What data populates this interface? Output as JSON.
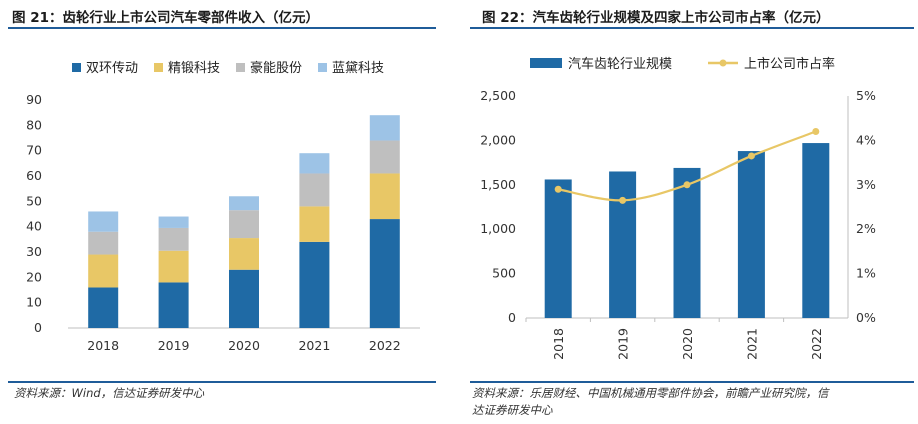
{
  "left": {
    "title": "图 21：齿轮行业上市公司汽车零部件收入（亿元）",
    "source": "资料来源：Wind，信达证券研发中心",
    "chart_data": {
      "type": "bar",
      "stacked": true,
      "categories": [
        "2018",
        "2019",
        "2020",
        "2021",
        "2022"
      ],
      "series": [
        {
          "name": "双环传动",
          "color": "#1f6aa5",
          "values": [
            16,
            18,
            23,
            34,
            43
          ]
        },
        {
          "name": "精锻科技",
          "color": "#e8c766",
          "values": [
            13,
            12.5,
            12.5,
            14,
            18
          ]
        },
        {
          "name": "豪能股份",
          "color": "#bfbfbf",
          "values": [
            9,
            9,
            11,
            13,
            13
          ]
        },
        {
          "name": "蓝黛科技",
          "color": "#9dc3e6",
          "values": [
            8,
            4.5,
            5.5,
            8,
            10
          ]
        }
      ],
      "ylim": [
        0,
        90
      ],
      "yticks": [
        "0",
        "10",
        "20",
        "30",
        "40",
        "50",
        "60",
        "70",
        "80",
        "90"
      ],
      "legend_position": "top"
    }
  },
  "right": {
    "title": "图 22：汽车齿轮行业规模及四家上市公司市占率（亿元）",
    "source_line1": "资料来源：乐居财经、中国机械通用零部件协会，前瞻产业研究院，信",
    "source_line2": "达证券研发中心",
    "chart_data": {
      "type": "bar+line",
      "categories": [
        "2018",
        "2019",
        "2020",
        "2021",
        "2022"
      ],
      "bar_series": {
        "name": "汽车齿轮行业规模",
        "color": "#1f6aa5",
        "values": [
          1560,
          1650,
          1690,
          1880,
          1970
        ]
      },
      "line_series": {
        "name": "上市公司市占率",
        "color": "#e8c766",
        "values": [
          2.9,
          2.65,
          3.0,
          3.65,
          4.2
        ],
        "unit": "%"
      },
      "y_left_lim": [
        0,
        2500
      ],
      "y_left_ticks": [
        "0",
        "500",
        "1,000",
        "1,500",
        "2,000",
        "2,500"
      ],
      "y_right_lim": [
        0,
        5
      ],
      "y_right_ticks": [
        "0%",
        "1%",
        "2%",
        "3%",
        "4%",
        "5%"
      ],
      "legend_position": "top"
    }
  },
  "colors": {
    "accent": "#1f5c99"
  }
}
